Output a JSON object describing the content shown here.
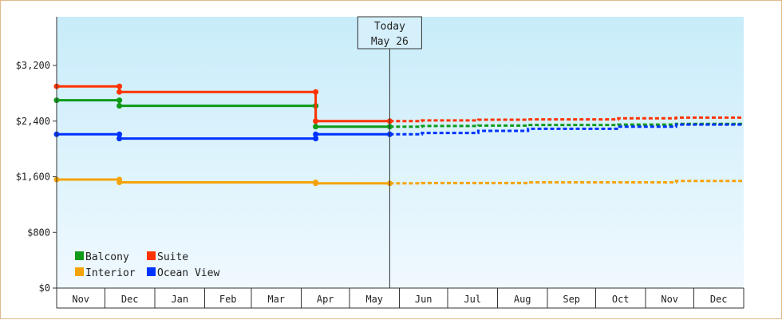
{
  "chart_data": {
    "type": "line",
    "title": "",
    "xlabel": "",
    "ylabel": "",
    "ylim": [
      0,
      3200
    ],
    "y_ticks": [
      0,
      800,
      1600,
      2400,
      3200
    ],
    "y_tick_labels": [
      "$0",
      "$800",
      "$1,600",
      "$2,400",
      "$3,200"
    ],
    "x_tick_labels": [
      "Nov",
      "Dec",
      "Jan",
      "Feb",
      "Mar",
      "Apr",
      "May",
      "Jun",
      "Jul",
      "Aug",
      "Sep",
      "Oct",
      "Nov",
      "Dec"
    ],
    "today_marker": {
      "line1": "Today",
      "line2": "May 26",
      "x": "2024-05-26"
    },
    "grid": false,
    "legend_position": "bottom-left",
    "series": [
      {
        "name": "Balcony",
        "color": "#0f9a1a",
        "history": [
          [
            "2023-11-01",
            2700
          ],
          [
            "2023-12-10",
            2700
          ],
          [
            "2023-12-10",
            2620
          ],
          [
            "2024-04-10",
            2620
          ],
          [
            "2024-04-10",
            2320
          ],
          [
            "2024-05-26",
            2320
          ]
        ],
        "history_markers": [
          [
            "2023-11-01",
            2700
          ],
          [
            "2023-12-10",
            2700
          ],
          [
            "2023-12-10",
            2620
          ],
          [
            "2024-04-10",
            2620
          ],
          [
            "2024-04-10",
            2320
          ],
          [
            "2024-05-26",
            2320
          ]
        ],
        "forecast": [
          [
            "2024-05-26",
            2320
          ],
          [
            "2024-06-15",
            2320
          ],
          [
            "2024-06-15",
            2330
          ],
          [
            "2024-07-20",
            2330
          ],
          [
            "2024-07-20",
            2335
          ],
          [
            "2024-08-20",
            2335
          ],
          [
            "2024-08-20",
            2345
          ],
          [
            "2024-10-15",
            2345
          ],
          [
            "2024-10-15",
            2350
          ],
          [
            "2024-11-20",
            2350
          ],
          [
            "2024-11-20",
            2360
          ],
          [
            "2024-12-31",
            2360
          ]
        ]
      },
      {
        "name": "Suite",
        "color": "#ff3300",
        "history": [
          [
            "2023-11-01",
            2900
          ],
          [
            "2023-12-10",
            2900
          ],
          [
            "2023-12-10",
            2820
          ],
          [
            "2024-04-10",
            2820
          ],
          [
            "2024-04-10",
            2400
          ],
          [
            "2024-05-26",
            2400
          ]
        ],
        "history_markers": [
          [
            "2023-11-01",
            2900
          ],
          [
            "2023-12-10",
            2900
          ],
          [
            "2023-12-10",
            2820
          ],
          [
            "2024-04-10",
            2820
          ],
          [
            "2024-04-10",
            2400
          ],
          [
            "2024-05-26",
            2400
          ]
        ],
        "forecast": [
          [
            "2024-05-26",
            2400
          ],
          [
            "2024-06-15",
            2400
          ],
          [
            "2024-06-15",
            2410
          ],
          [
            "2024-07-20",
            2410
          ],
          [
            "2024-07-20",
            2420
          ],
          [
            "2024-08-20",
            2420
          ],
          [
            "2024-08-20",
            2425
          ],
          [
            "2024-10-15",
            2425
          ],
          [
            "2024-10-15",
            2440
          ],
          [
            "2024-11-20",
            2440
          ],
          [
            "2024-11-20",
            2450
          ],
          [
            "2024-12-31",
            2450
          ]
        ]
      },
      {
        "name": "Interior",
        "color": "#f5a30a",
        "history": [
          [
            "2023-11-01",
            1560
          ],
          [
            "2023-12-10",
            1560
          ],
          [
            "2023-12-10",
            1520
          ],
          [
            "2024-04-10",
            1520
          ],
          [
            "2024-04-10",
            1505
          ],
          [
            "2024-05-26",
            1505
          ]
        ],
        "history_markers": [
          [
            "2023-11-01",
            1560
          ],
          [
            "2023-12-10",
            1560
          ],
          [
            "2023-12-10",
            1520
          ],
          [
            "2024-04-10",
            1520
          ],
          [
            "2024-04-10",
            1505
          ],
          [
            "2024-05-26",
            1505
          ]
        ],
        "forecast": [
          [
            "2024-05-26",
            1505
          ],
          [
            "2024-06-15",
            1505
          ],
          [
            "2024-06-15",
            1510
          ],
          [
            "2024-08-20",
            1510
          ],
          [
            "2024-08-20",
            1520
          ],
          [
            "2024-11-20",
            1520
          ],
          [
            "2024-11-20",
            1540
          ],
          [
            "2024-12-31",
            1540
          ]
        ]
      },
      {
        "name": "Ocean View",
        "color": "#0033ff",
        "history": [
          [
            "2023-11-01",
            2210
          ],
          [
            "2023-12-10",
            2210
          ],
          [
            "2023-12-10",
            2150
          ],
          [
            "2024-04-10",
            2150
          ],
          [
            "2024-04-10",
            2210
          ],
          [
            "2024-05-26",
            2210
          ]
        ],
        "history_markers": [
          [
            "2023-11-01",
            2210
          ],
          [
            "2023-12-10",
            2210
          ],
          [
            "2023-12-10",
            2150
          ],
          [
            "2024-04-10",
            2150
          ],
          [
            "2024-04-10",
            2210
          ],
          [
            "2024-05-26",
            2210
          ]
        ],
        "forecast": [
          [
            "2024-05-26",
            2210
          ],
          [
            "2024-06-15",
            2210
          ],
          [
            "2024-06-15",
            2230
          ],
          [
            "2024-07-20",
            2230
          ],
          [
            "2024-07-20",
            2260
          ],
          [
            "2024-08-20",
            2260
          ],
          [
            "2024-08-20",
            2290
          ],
          [
            "2024-10-15",
            2290
          ],
          [
            "2024-10-15",
            2320
          ],
          [
            "2024-11-20",
            2320
          ],
          [
            "2024-11-20",
            2350
          ],
          [
            "2024-12-31",
            2350
          ]
        ]
      }
    ]
  }
}
